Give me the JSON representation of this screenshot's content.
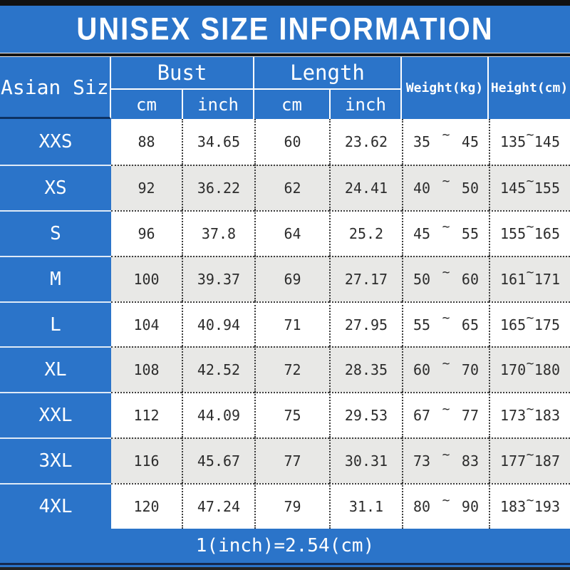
{
  "page": {
    "title": "UNISEX SIZE INFORMATION",
    "footer_note": "1(inch)=2.54(cm)"
  },
  "colors": {
    "accent_blue": "#2b74c9",
    "row_alt_gray": "#e8e8e6",
    "text_light": "#ffffff",
    "text_dark": "#2c2c2c"
  },
  "table": {
    "range_separator": "~",
    "header": {
      "size_col": "Asian Size",
      "bust": "Bust",
      "length": "Length",
      "weight": "Weight(kg)",
      "height": "Height(cm)",
      "cm": "cm",
      "inch": "inch"
    },
    "rows": [
      {
        "size": "XXS",
        "bust_cm": "88",
        "bust_inch": "34.65",
        "length_cm": "60",
        "length_inch": "23.62",
        "weight_min": "35",
        "weight_max": "45",
        "height_min": "135",
        "height_max": "145"
      },
      {
        "size": "XS",
        "bust_cm": "92",
        "bust_inch": "36.22",
        "length_cm": "62",
        "length_inch": "24.41",
        "weight_min": "40",
        "weight_max": "50",
        "height_min": "145",
        "height_max": "155"
      },
      {
        "size": "S",
        "bust_cm": "96",
        "bust_inch": "37.8",
        "length_cm": "64",
        "length_inch": "25.2",
        "weight_min": "45",
        "weight_max": "55",
        "height_min": "155",
        "height_max": "165"
      },
      {
        "size": "M",
        "bust_cm": "100",
        "bust_inch": "39.37",
        "length_cm": "69",
        "length_inch": "27.17",
        "weight_min": "50",
        "weight_max": "60",
        "height_min": "161",
        "height_max": "171"
      },
      {
        "size": "L",
        "bust_cm": "104",
        "bust_inch": "40.94",
        "length_cm": "71",
        "length_inch": "27.95",
        "weight_min": "55",
        "weight_max": "65",
        "height_min": "165",
        "height_max": "175"
      },
      {
        "size": "XL",
        "bust_cm": "108",
        "bust_inch": "42.52",
        "length_cm": "72",
        "length_inch": "28.35",
        "weight_min": "60",
        "weight_max": "70",
        "height_min": "170",
        "height_max": "180"
      },
      {
        "size": "XXL",
        "bust_cm": "112",
        "bust_inch": "44.09",
        "length_cm": "75",
        "length_inch": "29.53",
        "weight_min": "67",
        "weight_max": "77",
        "height_min": "173",
        "height_max": "183"
      },
      {
        "size": "3XL",
        "bust_cm": "116",
        "bust_inch": "45.67",
        "length_cm": "77",
        "length_inch": "30.31",
        "weight_min": "73",
        "weight_max": "83",
        "height_min": "177",
        "height_max": "187"
      },
      {
        "size": "4XL",
        "bust_cm": "120",
        "bust_inch": "47.24",
        "length_cm": "79",
        "length_inch": "31.1",
        "weight_min": "80",
        "weight_max": "90",
        "height_min": "183",
        "height_max": "193"
      }
    ]
  }
}
